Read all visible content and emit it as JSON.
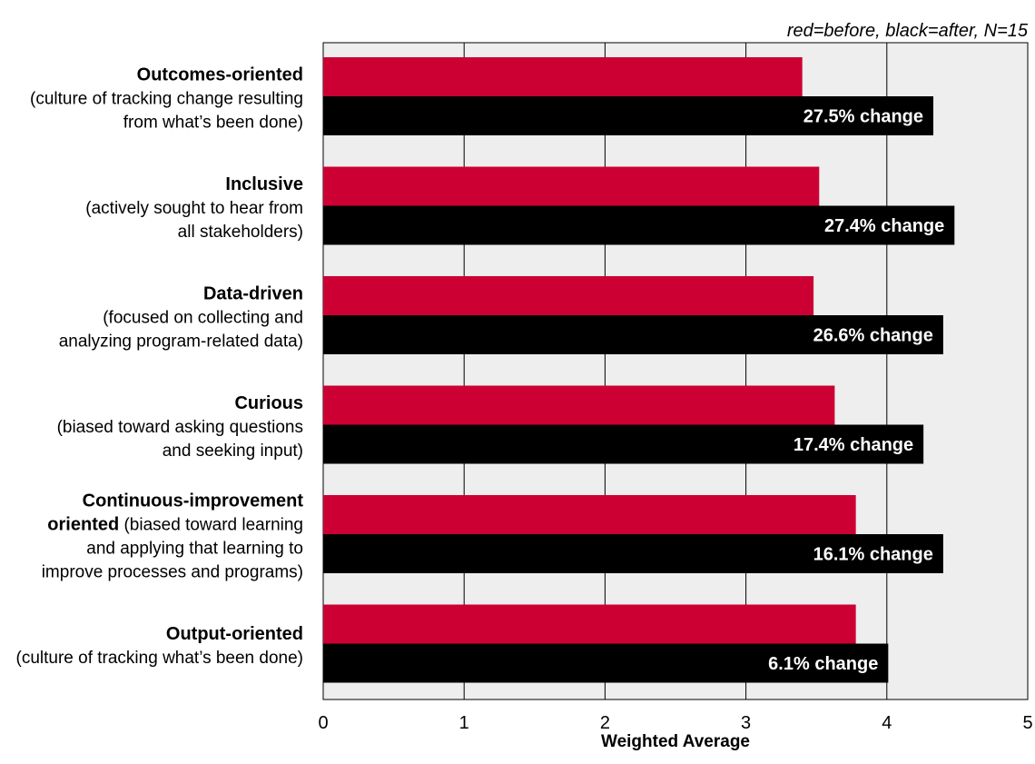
{
  "chart_data": {
    "type": "bar",
    "orientation": "horizontal",
    "note": "red=before, black=after, N=15",
    "xlabel": "Weighted Average",
    "xlim": [
      0,
      5
    ],
    "x_ticks": [
      "0",
      "1",
      "2",
      "3",
      "4",
      "5"
    ],
    "grid": true,
    "categories": [
      {
        "title": "Outcomes-oriented",
        "description_lines": [
          "(culture of tracking change resulting",
          "from what’s been done)"
        ]
      },
      {
        "title": "Inclusive",
        "description_lines": [
          "(actively sought to hear from",
          "all stakeholders)"
        ]
      },
      {
        "title": "Data-driven",
        "description_lines": [
          "(focused on collecting and",
          "analyzing program-related data)"
        ]
      },
      {
        "title": "Curious",
        "description_lines": [
          "(biased toward asking questions",
          "and seeking input)"
        ]
      },
      {
        "title": "Continuous-improvement",
        "title_line2": "oriented",
        "line2_rest": " (biased toward learning",
        "description_lines": [
          "and applying that learning to",
          "improve processes and programs)"
        ]
      },
      {
        "title": "Output-oriented",
        "description_lines": [
          "(culture of tracking what’s been done)"
        ]
      }
    ],
    "series": [
      {
        "name": "before",
        "color": "#cc0033",
        "values": [
          3.4,
          3.52,
          3.48,
          3.63,
          3.78,
          3.78
        ]
      },
      {
        "name": "after",
        "color": "#000000",
        "values": [
          4.33,
          4.48,
          4.4,
          4.26,
          4.4,
          4.01
        ]
      }
    ],
    "data_labels": [
      "27.5% change",
      "27.4% change",
      "26.6% change",
      "17.4% change",
      "16.1% change",
      "6.1% change"
    ],
    "colors": {
      "plot_background": "#eeeeee",
      "grid": "#000000",
      "before": "#cc0033",
      "after": "#000000",
      "label_text": "#ffffff"
    }
  }
}
